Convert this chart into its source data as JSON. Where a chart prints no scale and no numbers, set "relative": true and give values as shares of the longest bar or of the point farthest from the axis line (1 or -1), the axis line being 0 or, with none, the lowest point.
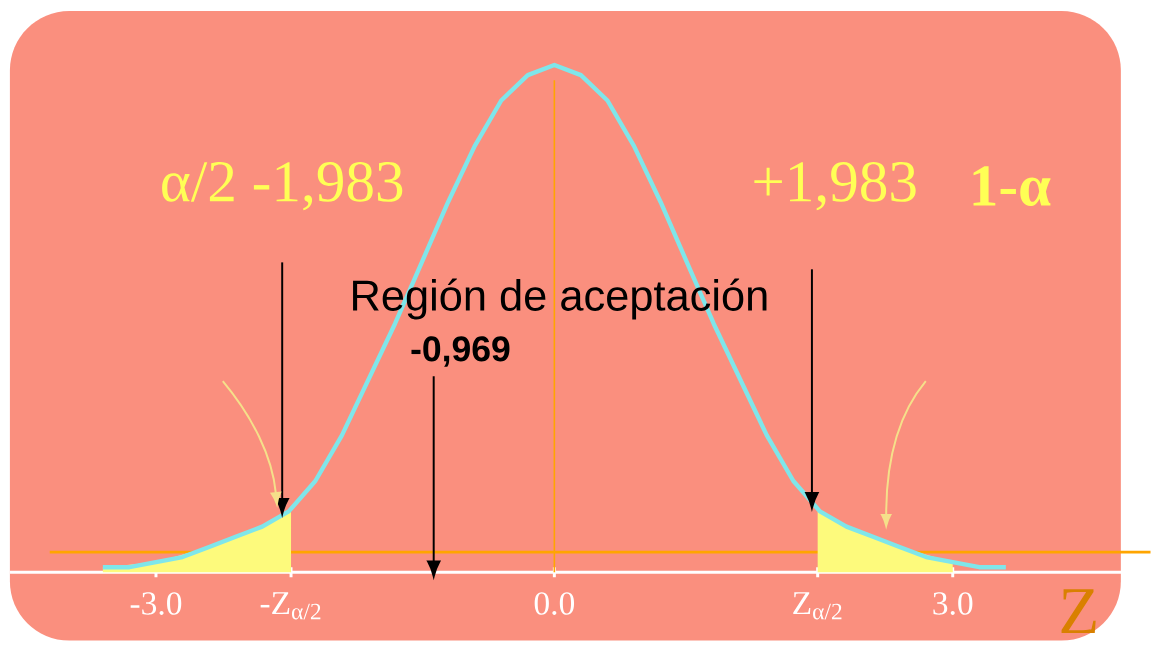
{
  "chart_data": {
    "type": "line",
    "relative": true,
    "xlabel": "Z",
    "xlim": [
      -4.1,
      4.4
    ],
    "xticks": [
      {
        "value": -3,
        "label": "-3.0"
      },
      {
        "value": -1.983,
        "label": "-Z$_{α/2}$"
      },
      {
        "value": 0,
        "label": "0.0"
      },
      {
        "value": 1.983,
        "label": "Z$_{α/2}$"
      },
      {
        "value": 3,
        "label": "3.0"
      }
    ],
    "series": [
      {
        "color": "#7fe6ea",
        "x": [
          -3.4,
          -3.2,
          -3.0,
          -2.8,
          -2.6,
          -2.4,
          -2.2,
          -2.0,
          -1.8,
          -1.6,
          -1.4,
          -1.2,
          -1.0,
          -0.8,
          -0.6,
          -0.4,
          -0.2,
          0,
          0.2,
          0.4,
          0.6,
          0.8,
          1.0,
          1.2,
          1.4,
          1.6,
          1.8,
          2.0,
          2.2,
          2.4,
          2.6,
          2.8,
          3.0,
          3.2,
          3.4
        ],
        "values": [
          0.01,
          0.01,
          0.02,
          0.03,
          0.05,
          0.07,
          0.09,
          0.12,
          0.18,
          0.27,
          0.38,
          0.49,
          0.61,
          0.73,
          0.84,
          0.93,
          0.98,
          1.0,
          0.98,
          0.93,
          0.84,
          0.73,
          0.61,
          0.49,
          0.38,
          0.27,
          0.18,
          0.12,
          0.09,
          0.07,
          0.05,
          0.03,
          0.02,
          0.01,
          0.01
        ]
      },
      {
        "type": "area",
        "color": "#fdfa7c",
        "x": [
          -3.4,
          -3.0,
          -2.6,
          -2.2,
          -1.983
        ],
        "values": [
          0.01,
          0.02,
          0.05,
          0.09,
          0.12
        ]
      },
      {
        "type": "area",
        "color": "#fdfa7c",
        "x": [
          1.983,
          2.2,
          2.6,
          3.0
        ],
        "values": [
          0.12,
          0.09,
          0.05,
          0.02
        ]
      }
    ],
    "ref_lines": [
      {
        "axis": "x",
        "value": 0,
        "color": "#ffa500"
      },
      {
        "axis": "y",
        "value": 0.04,
        "color": "#ffa500"
      }
    ],
    "annotations": [
      "α/2  -1,983",
      "+1,983",
      "**1-α**",
      "Región de aceptación",
      "-0,969"
    ]
  }
}
